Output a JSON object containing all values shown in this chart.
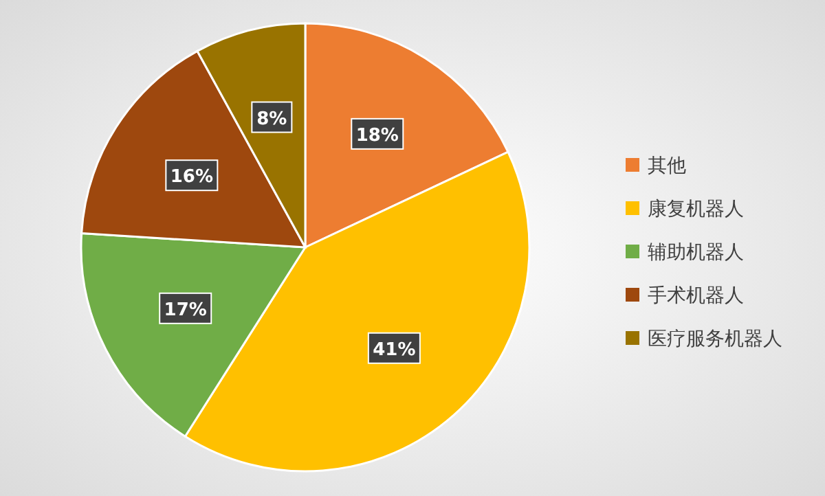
{
  "chart_data": {
    "type": "pie",
    "categories": [
      "其他",
      "康复机器人",
      "辅助机器人",
      "手术机器人",
      "医疗服务机器人"
    ],
    "values": [
      18,
      41,
      17,
      16,
      8
    ],
    "colors": [
      "#ed7d31",
      "#ffc000",
      "#70ad47",
      "#9e480e",
      "#997300"
    ],
    "value_labels": [
      "18%",
      "41%",
      "17%",
      "16%",
      "8%"
    ],
    "legend": "right"
  }
}
